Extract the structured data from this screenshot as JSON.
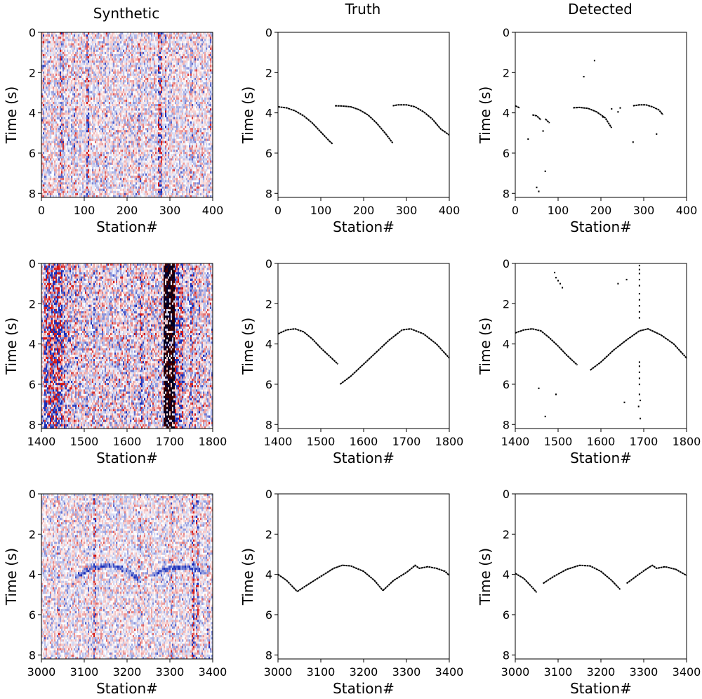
{
  "figure": {
    "column_titles": [
      "Synthetic",
      "Truth",
      "Detected"
    ],
    "xlabel": "Station#",
    "ylabel": "Time (s)"
  },
  "chart_data": [
    {
      "type": "heatmap",
      "row": 0,
      "col": 0,
      "title": "Synthetic",
      "xlabel": "Station#",
      "ylabel": "Time (s)",
      "xlim": [
        0,
        400
      ],
      "ylim": [
        8.2,
        0
      ],
      "xticks": [
        0,
        100,
        200,
        300,
        400
      ],
      "yticks": [
        0,
        2,
        4,
        6,
        8
      ],
      "colormap": "seismic (blue-white-red)",
      "colors": {
        "negative": "#1f3fb0",
        "positive": "#d42020",
        "zero": "#ffffff"
      },
      "noise_level": 0.55,
      "dark_columns": [],
      "hidden_arrivals": [],
      "strong_traces": [
        [
          3,
          0.5
        ],
        [
          45,
          0.7
        ],
        [
          50,
          0.6
        ],
        [
          80,
          0.5
        ],
        [
          108,
          0.8
        ],
        [
          150,
          0.4
        ],
        [
          230,
          0.5
        ],
        [
          275,
          0.9
        ],
        [
          280,
          0.8
        ],
        [
          290,
          0.6
        ],
        [
          350,
          0.5
        ],
        [
          395,
          0.5
        ]
      ]
    },
    {
      "type": "scatter",
      "row": 0,
      "col": 1,
      "title": "Truth",
      "xlabel": "Station#",
      "ylabel": "Time (s)",
      "xlim": [
        0,
        400
      ],
      "ylim": [
        8.2,
        0
      ],
      "xticks": [
        0,
        100,
        200,
        300,
        400
      ],
      "yticks": [
        0,
        2,
        4,
        6,
        8
      ],
      "segments": [
        {
          "x": [
            0,
            20,
            40,
            60,
            80,
            100,
            120,
            128
          ],
          "y": [
            3.7,
            3.75,
            3.9,
            4.15,
            4.5,
            4.95,
            5.4,
            5.55
          ]
        },
        {
          "x": [
            133,
            150,
            170,
            190,
            210,
            230,
            250,
            268
          ],
          "y": [
            3.65,
            3.66,
            3.7,
            3.85,
            4.1,
            4.5,
            5.0,
            5.5
          ]
        },
        {
          "x": [
            268,
            280,
            300,
            320,
            340,
            360,
            380,
            400
          ],
          "y": [
            3.65,
            3.6,
            3.6,
            3.7,
            3.95,
            4.3,
            4.8,
            5.1
          ]
        }
      ],
      "points": {
        "x": [],
        "y": []
      }
    },
    {
      "type": "scatter",
      "row": 0,
      "col": 2,
      "title": "Detected",
      "xlabel": "Station#",
      "ylabel": "Time (s)",
      "xlim": [
        0,
        400
      ],
      "ylim": [
        8.2,
        0
      ],
      "xticks": [
        0,
        100,
        200,
        300,
        400
      ],
      "yticks": [
        0,
        2,
        4,
        6,
        8
      ],
      "segments": [
        {
          "x": [
            0,
            5,
            10
          ],
          "y": [
            3.65,
            3.7,
            3.75
          ]
        },
        {
          "x": [
            40,
            50,
            60
          ],
          "y": [
            4.1,
            4.15,
            4.35
          ]
        },
        {
          "x": [
            70,
            80
          ],
          "y": [
            4.3,
            4.5
          ]
        },
        {
          "x": [
            135,
            150,
            170,
            190,
            210,
            225
          ],
          "y": [
            3.75,
            3.73,
            3.78,
            3.95,
            4.25,
            4.75
          ]
        },
        {
          "x": [
            275,
            290,
            305,
            320,
            335,
            345
          ],
          "y": [
            3.65,
            3.6,
            3.6,
            3.7,
            3.85,
            4.1
          ]
        }
      ],
      "points": {
        "x": [
          185,
          160,
          225,
          245,
          240,
          205,
          65,
          70,
          330,
          30,
          275,
          50,
          55
        ],
        "y": [
          1.4,
          2.2,
          3.8,
          3.75,
          3.95,
          4.2,
          4.9,
          6.9,
          5.05,
          5.3,
          5.45,
          7.7,
          7.9
        ]
      }
    },
    {
      "type": "heatmap",
      "row": 1,
      "col": 0,
      "title": "Synthetic",
      "xlabel": "Station#",
      "ylabel": "Time (s)",
      "xlim": [
        1400,
        1800
      ],
      "ylim": [
        8.2,
        0
      ],
      "xticks": [
        1400,
        1500,
        1600,
        1700,
        1800
      ],
      "yticks": [
        0,
        2,
        4,
        6,
        8
      ],
      "colormap": "seismic (blue-white-red)",
      "colors": {
        "negative": "#1f3fb0",
        "positive": "#d42020",
        "zero": "#ffffff"
      },
      "noise_level": 0.75,
      "dark_columns": [
        [
          1405,
          1448,
          0.85
        ],
        [
          1685,
          1710,
          1.0
        ],
        [
          1710,
          1730,
          0.75
        ],
        [
          1450,
          1470,
          0.45
        ],
        [
          1750,
          1770,
          0.4
        ]
      ],
      "strong_traces": [
        [
          1480,
          0.6
        ],
        [
          1520,
          0.5
        ],
        [
          1632,
          0.8
        ],
        [
          1640,
          0.5
        ],
        [
          1750,
          0.7
        ],
        [
          1600,
          0.4
        ]
      ],
      "hidden_arrivals": [
        {
          "x": [
            1440,
            1455,
            1470
          ],
          "y": [
            3.3,
            3.5,
            3.9
          ]
        }
      ]
    },
    {
      "type": "scatter",
      "row": 1,
      "col": 1,
      "title": "Truth",
      "xlabel": "Station#",
      "ylabel": "Time (s)",
      "xlim": [
        1400,
        1800
      ],
      "ylim": [
        8.2,
        0
      ],
      "xticks": [
        1400,
        1500,
        1600,
        1700,
        1800
      ],
      "yticks": [
        0,
        2,
        4,
        6,
        8
      ],
      "segments": [
        {
          "x": [
            1400,
            1420,
            1440,
            1460,
            1480,
            1500,
            1520,
            1540
          ],
          "y": [
            3.5,
            3.3,
            3.25,
            3.4,
            3.75,
            4.2,
            4.6,
            5.0
          ]
        },
        {
          "x": [
            1545,
            1570,
            1600,
            1630,
            1660,
            1690,
            1710,
            1740,
            1770,
            1800
          ],
          "y": [
            6.0,
            5.6,
            5.0,
            4.4,
            3.8,
            3.3,
            3.25,
            3.5,
            4.0,
            4.7
          ]
        }
      ],
      "points": {
        "x": [],
        "y": []
      }
    },
    {
      "type": "scatter",
      "row": 1,
      "col": 2,
      "title": "Detected",
      "xlabel": "Station#",
      "ylabel": "Time (s)",
      "xlim": [
        1400,
        1800
      ],
      "ylim": [
        8.2,
        0
      ],
      "xticks": [
        1400,
        1500,
        1600,
        1700,
        1800
      ],
      "yticks": [
        0,
        2,
        4,
        6,
        8
      ],
      "segments": [
        {
          "x": [
            1400,
            1420,
            1440,
            1460,
            1480,
            1500,
            1520,
            1545
          ],
          "y": [
            3.45,
            3.3,
            3.25,
            3.35,
            3.7,
            4.1,
            4.55,
            5.05
          ]
        },
        {
          "x": [
            1575,
            1600,
            1630,
            1660,
            1690,
            1710,
            1740,
            1770,
            1800
          ],
          "y": [
            5.3,
            4.9,
            4.3,
            3.8,
            3.35,
            3.25,
            3.55,
            4.0,
            4.7
          ]
        }
      ],
      "points": {
        "x": [
          1492,
          1495,
          1500,
          1505,
          1510,
          1640,
          1660,
          1690,
          1690,
          1690,
          1690,
          1690,
          1690,
          1690,
          1690,
          1690,
          1690,
          1690,
          1690,
          1690,
          1690,
          1690,
          1692,
          1692,
          1455,
          1470,
          1495,
          1655,
          1688,
          1690
        ],
        "y": [
          0.45,
          0.7,
          0.85,
          1.0,
          1.2,
          1.0,
          0.8,
          0.1,
          0.3,
          0.5,
          0.8,
          1.1,
          1.5,
          1.8,
          2.1,
          2.4,
          2.7,
          4.9,
          5.1,
          5.4,
          5.7,
          6.0,
          6.8,
          7.7,
          6.2,
          7.6,
          6.5,
          6.9,
          7.1,
          6.5
        ]
      }
    },
    {
      "type": "heatmap",
      "row": 2,
      "col": 0,
      "title": "Synthetic",
      "xlabel": "Station#",
      "ylabel": "Time (s)",
      "xlim": [
        3000,
        3400
      ],
      "ylim": [
        8.2,
        0
      ],
      "xticks": [
        3000,
        3100,
        3200,
        3300,
        3400
      ],
      "yticks": [
        0,
        2,
        4,
        6,
        8
      ],
      "colormap": "seismic (blue-white-red)",
      "colors": {
        "negative": "#1f3fb0",
        "positive": "#d42020",
        "zero": "#ffffff"
      },
      "noise_level": 0.5,
      "dark_columns": [],
      "strong_traces": [
        [
          3040,
          0.5
        ],
        [
          3110,
          0.5
        ],
        [
          3125,
          0.7
        ],
        [
          3230,
          0.5
        ],
        [
          3305,
          0.5
        ],
        [
          3355,
          0.9
        ],
        [
          3365,
          0.6
        ],
        [
          3390,
          0.5
        ]
      ],
      "hidden_arrivals": [
        {
          "x": [
            3080,
            3110,
            3140,
            3170,
            3200,
            3230
          ],
          "y": [
            4.1,
            3.75,
            3.6,
            3.6,
            3.8,
            4.3
          ]
        },
        {
          "x": [
            3260,
            3290,
            3320,
            3350,
            3380
          ],
          "y": [
            4.0,
            3.75,
            3.62,
            3.68,
            3.9
          ]
        }
      ]
    },
    {
      "type": "scatter",
      "row": 2,
      "col": 1,
      "title": "Truth",
      "xlabel": "Station#",
      "ylabel": "Time (s)",
      "xlim": [
        3000,
        3400
      ],
      "ylim": [
        8.2,
        0
      ],
      "xticks": [
        3000,
        3100,
        3200,
        3300,
        3400
      ],
      "yticks": [
        0,
        2,
        4,
        6,
        8
      ],
      "segments": [
        {
          "x": [
            3000,
            3020,
            3045
          ],
          "y": [
            4.0,
            4.3,
            4.85
          ]
        },
        {
          "x": [
            3045,
            3070,
            3100,
            3130,
            3150,
            3170,
            3200,
            3225,
            3245
          ],
          "y": [
            4.85,
            4.5,
            4.1,
            3.7,
            3.55,
            3.58,
            3.85,
            4.3,
            4.8
          ]
        },
        {
          "x": [
            3245,
            3270,
            3300,
            3315,
            3320,
            3330,
            3350,
            3370,
            3390,
            3400
          ],
          "y": [
            4.8,
            4.3,
            3.9,
            3.65,
            3.55,
            3.7,
            3.62,
            3.7,
            3.85,
            4.05
          ]
        }
      ],
      "points": {
        "x": [],
        "y": []
      }
    },
    {
      "type": "scatter",
      "row": 2,
      "col": 2,
      "title": "Detected",
      "xlabel": "Station#",
      "ylabel": "Time (s)",
      "xlim": [
        3000,
        3400
      ],
      "ylim": [
        8.2,
        0
      ],
      "xticks": [
        3000,
        3100,
        3200,
        3300,
        3400
      ],
      "yticks": [
        0,
        2,
        4,
        6,
        8
      ],
      "segments": [
        {
          "x": [
            3000,
            3020,
            3040,
            3050
          ],
          "y": [
            3.95,
            4.2,
            4.65,
            4.9
          ]
        },
        {
          "x": [
            3065,
            3090,
            3120,
            3150,
            3175,
            3200,
            3225,
            3245
          ],
          "y": [
            4.45,
            4.1,
            3.75,
            3.55,
            3.58,
            3.85,
            4.3,
            4.75
          ]
        },
        {
          "x": [
            3260,
            3285,
            3305,
            3320,
            3330,
            3350,
            3375,
            3400
          ],
          "y": [
            4.45,
            4.05,
            3.75,
            3.55,
            3.7,
            3.62,
            3.75,
            4.05
          ]
        }
      ],
      "points": {
        "x": [],
        "y": []
      }
    }
  ]
}
